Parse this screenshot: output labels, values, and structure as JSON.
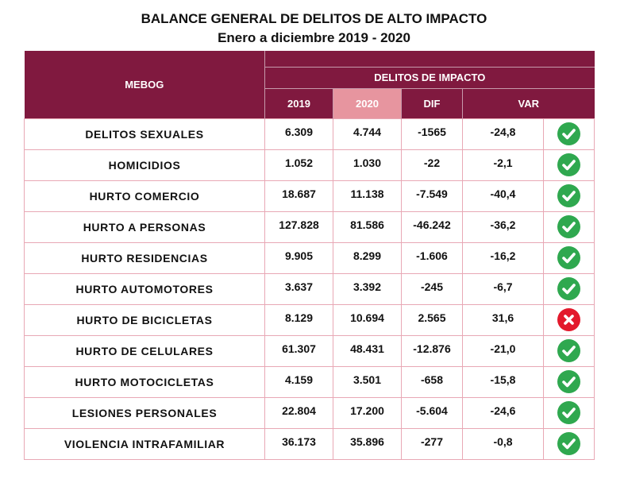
{
  "title": "BALANCE GENERAL DE DELITOS DE ALTO IMPACTO",
  "subtitle": "Enero a diciembre 2019 - 2020",
  "table": {
    "corner_label": "MEBOG",
    "group_label": "DELITOS DE IMPACTO",
    "columns": [
      "2019",
      "2020",
      "DIF",
      "VAR"
    ],
    "rows": [
      {
        "label": "DELITOS SEXUALES",
        "y2019": "6.309",
        "y2020": "4.744",
        "dif": "-1565",
        "var": "-24,8",
        "status": "check-icon"
      },
      {
        "label": "HOMICIDIOS",
        "y2019": "1.052",
        "y2020": "1.030",
        "dif": "-22",
        "var": "-2,1",
        "status": "check-icon"
      },
      {
        "label": "HURTO COMERCIO",
        "y2019": "18.687",
        "y2020": "11.138",
        "dif": "-7.549",
        "var": "-40,4",
        "status": "check-icon"
      },
      {
        "label": "HURTO A PERSONAS",
        "y2019": "127.828",
        "y2020": "81.586",
        "dif": "-46.242",
        "var": "-36,2",
        "status": "check-icon"
      },
      {
        "label": "HURTO RESIDENCIAS",
        "y2019": "9.905",
        "y2020": "8.299",
        "dif": "-1.606",
        "var": "-16,2",
        "status": "check-icon"
      },
      {
        "label": "HURTO AUTOMOTORES",
        "y2019": "3.637",
        "y2020": "3.392",
        "dif": "-245",
        "var": "-6,7",
        "status": "check-icon"
      },
      {
        "label": "HURTO DE BICICLETAS",
        "y2019": "8.129",
        "y2020": "10.694",
        "dif": "2.565",
        "var": "31,6",
        "status": "x-icon"
      },
      {
        "label": "HURTO DE CELULARES",
        "y2019": "61.307",
        "y2020": "48.431",
        "dif": "-12.876",
        "var": "-21,0",
        "status": "check-icon"
      },
      {
        "label": "HURTO MOTOCICLETAS",
        "y2019": "4.159",
        "y2020": "3.501",
        "dif": "-658",
        "var": "-15,8",
        "status": "check-icon"
      },
      {
        "label": "LESIONES PERSONALES",
        "y2019": "22.804",
        "y2020": "17.200",
        "dif": "-5.604",
        "var": "-24,6",
        "status": "check-icon"
      },
      {
        "label": "VIOLENCIA INTRAFAMILIAR",
        "y2019": "36.173",
        "y2020": "35.896",
        "dif": "-277",
        "var": "-0,8",
        "status": "check-icon"
      }
    ]
  },
  "colors": {
    "header": "#80193f",
    "highlight": "#e7959f",
    "ok": "#2fa84f",
    "bad": "#e3192c"
  }
}
